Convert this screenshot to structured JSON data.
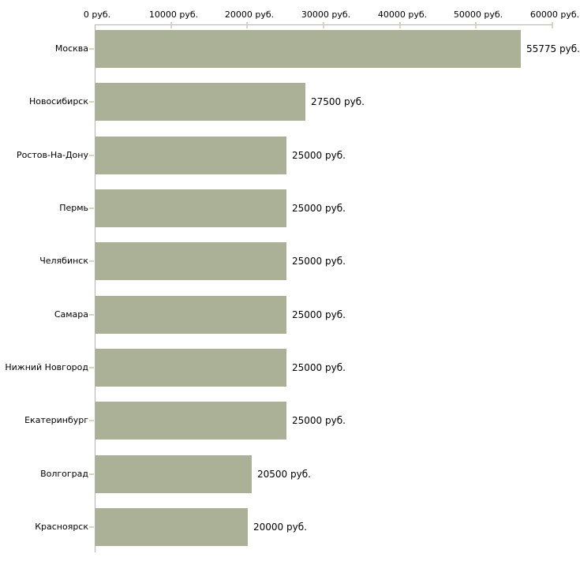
{
  "chart_data": {
    "type": "bar",
    "orientation": "horizontal",
    "title": "",
    "xlabel": "",
    "ylabel": "",
    "categories": [
      "Москва",
      "Новосибирск",
      "Ростов-На-Дону",
      "Пермь",
      "Челябинск",
      "Самара",
      "Нижний Новгород",
      "Екатеринбург",
      "Волгоград",
      "Красноярск"
    ],
    "values": [
      55775,
      27500,
      25000,
      25000,
      25000,
      25000,
      25000,
      25000,
      20500,
      20000
    ],
    "value_labels": [
      "55775 руб.",
      "27500 руб.",
      "25000 руб.",
      "25000 руб.",
      "25000 руб.",
      "25000 руб.",
      "25000 руб.",
      "25000 руб.",
      "20500 руб.",
      "20000 руб."
    ],
    "xlim": [
      0,
      60000
    ],
    "x_ticks": [
      0,
      10000,
      20000,
      30000,
      40000,
      50000,
      60000
    ],
    "x_tick_labels": [
      "0 руб.",
      "10000 руб.",
      "20000 руб.",
      "30000 руб.",
      "40000 руб.",
      "50000 руб.",
      "60000 руб."
    ],
    "x_axis_position": "top",
    "grid": false,
    "legend": false,
    "colors": {
      "bar": "#abb196",
      "axis_line": "#b2b2b2",
      "tick": "#d6d6b8",
      "text": "#000000",
      "background": "#ffffff"
    }
  }
}
